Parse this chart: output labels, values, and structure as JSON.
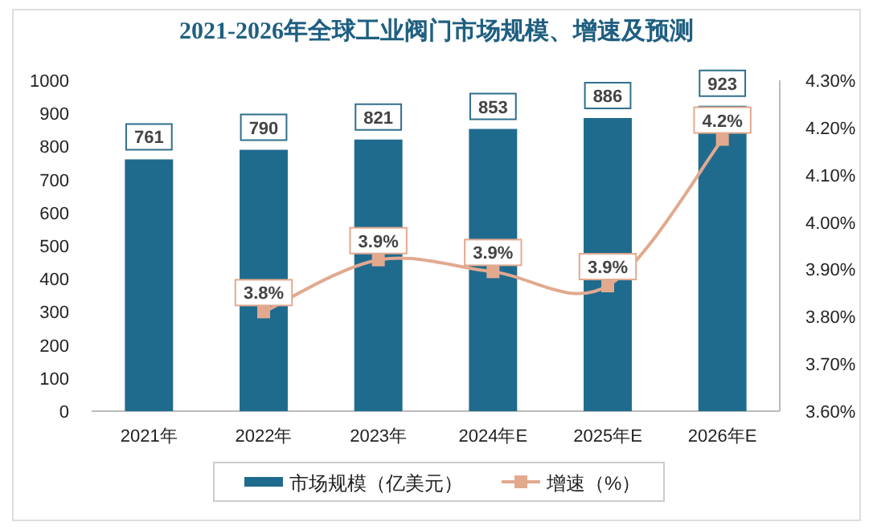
{
  "chart_data": {
    "type": "bar",
    "title": "2021-2026年全球工业阀门市场规模、增速及预测",
    "categories": [
      "2021年",
      "2022年",
      "2023年",
      "2024年E",
      "2025年E",
      "2026年E"
    ],
    "series": [
      {
        "name": "市场规模（亿美元）",
        "type": "bar",
        "color": "#1f6b8e",
        "values": [
          761,
          790,
          821,
          853,
          886,
          923
        ]
      },
      {
        "name": "增速（%）",
        "type": "line",
        "axis": "y2",
        "color": "#e2a98f",
        "marker": "square",
        "values": [
          null,
          3.81,
          3.92,
          3.895,
          3.865,
          4.175
        ],
        "value_labels": [
          null,
          "3.8%",
          "3.9%",
          "3.9%",
          "3.9%",
          "4.2%"
        ]
      }
    ],
    "data_labels": true,
    "ylim": [
      0,
      1000
    ],
    "yticks": [
      0,
      100,
      200,
      300,
      400,
      500,
      600,
      700,
      800,
      900,
      1000
    ],
    "y2lim": [
      3.6,
      4.3
    ],
    "y2ticks": [
      {
        "value": 3.6,
        "label": "3.60%"
      },
      {
        "value": 3.7,
        "label": "3.70%"
      },
      {
        "value": 3.8,
        "label": "3.80%"
      },
      {
        "value": 3.9,
        "label": "3.90%"
      },
      {
        "value": 4.0,
        "label": "4.00%"
      },
      {
        "value": 4.1,
        "label": "4.10%"
      },
      {
        "value": 4.2,
        "label": "4.20%"
      },
      {
        "value": 4.3,
        "label": "4.30%"
      }
    ],
    "grid": false,
    "legend": "bottom"
  }
}
